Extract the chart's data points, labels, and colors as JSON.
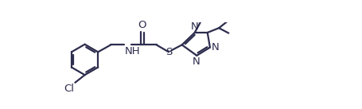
{
  "bg_color": "#ffffff",
  "line_color": "#2d2d4e",
  "line_width": 1.6,
  "font_size": 9.5,
  "figsize": [
    4.55,
    1.37
  ],
  "dpi": 100,
  "xlim": [
    -0.5,
    10.5
  ],
  "ylim": [
    -1.2,
    1.4
  ]
}
